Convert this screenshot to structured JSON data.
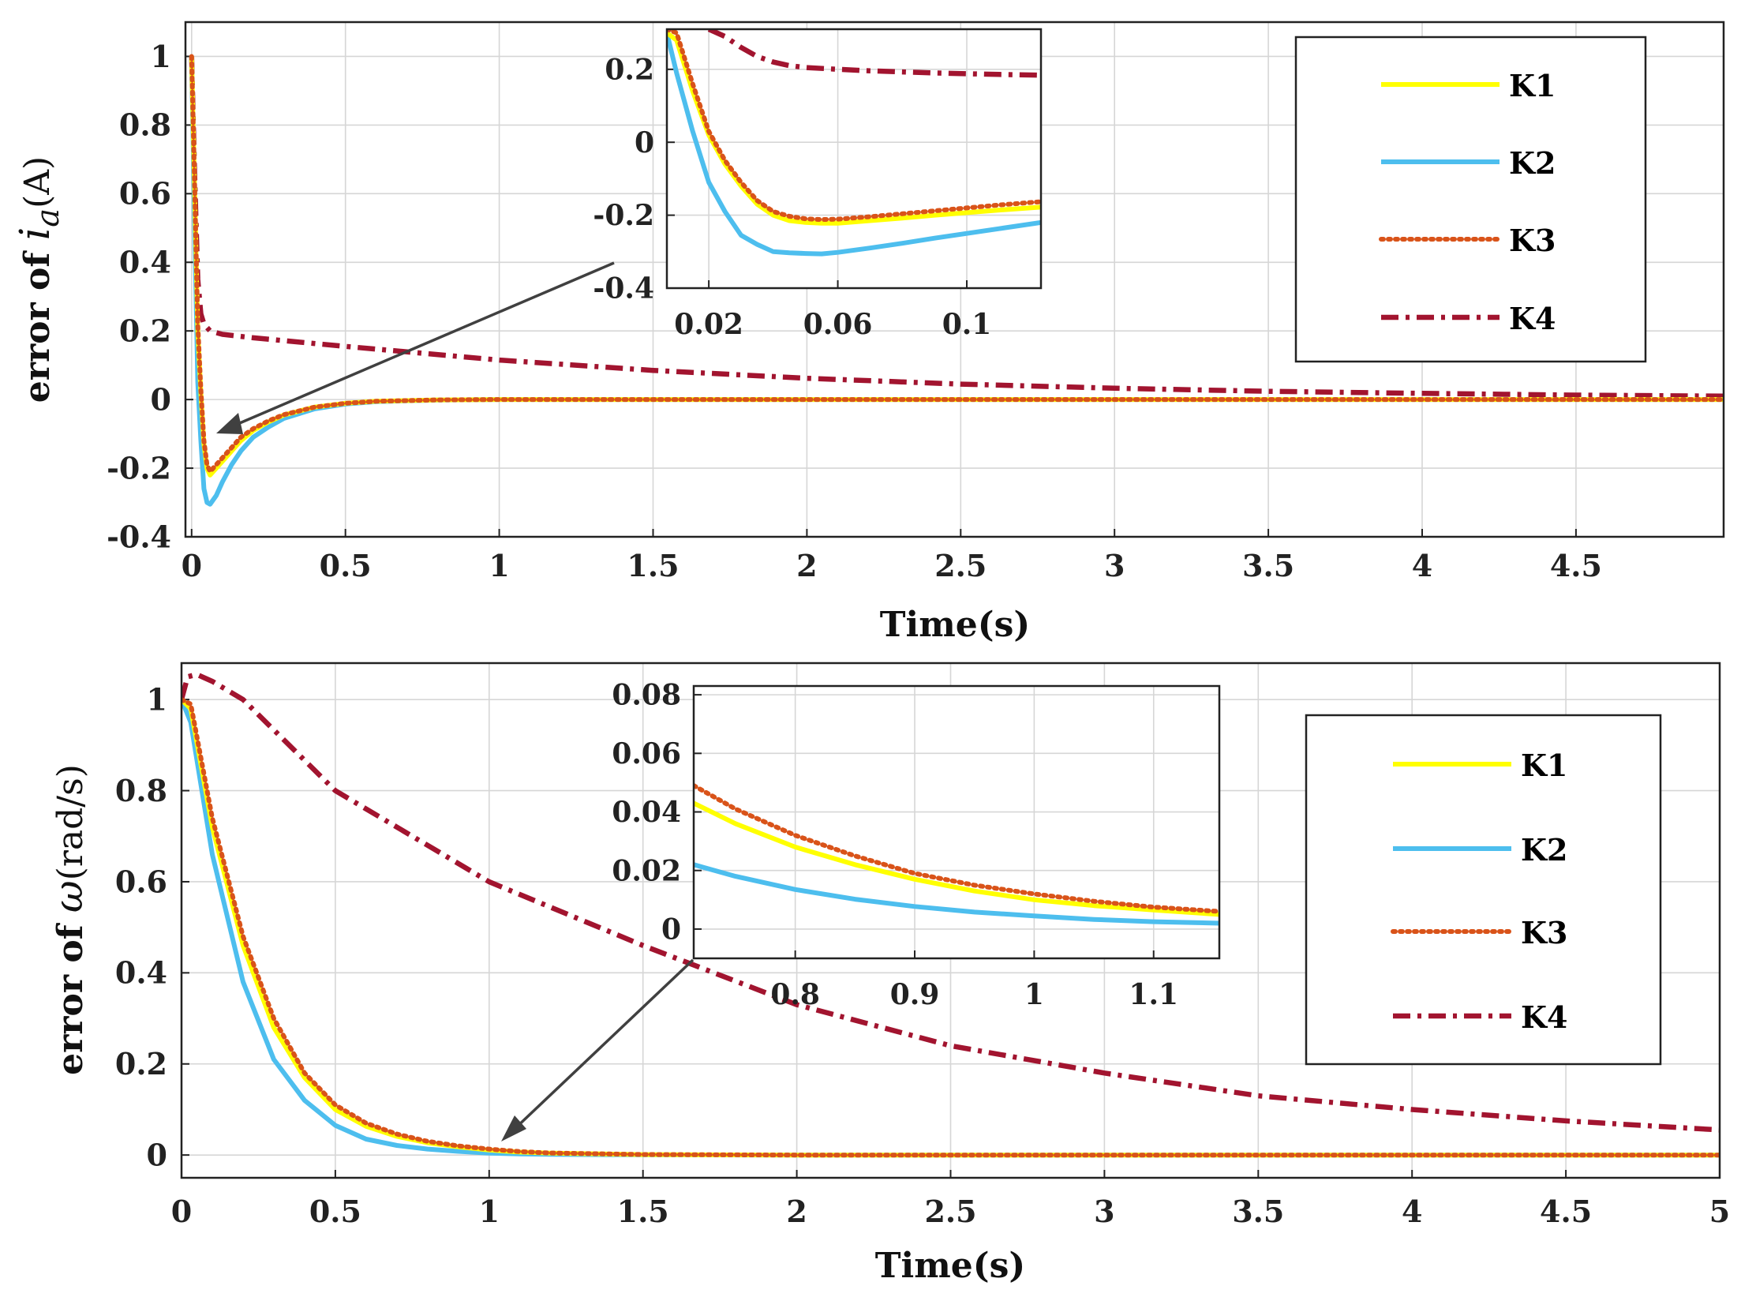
{
  "figure": {
    "background": "#ffffff"
  },
  "colors": {
    "K1": "#ffff00",
    "K2": "#4dbeee",
    "K3": "#d95319",
    "K4": "#a2142f",
    "arrow": "#404040"
  },
  "chart_data": [
    {
      "id": "top-main",
      "type": "line",
      "xlabel": "Time(s)",
      "ylabel_prefix": "error of ",
      "ylabel_symbol": "i",
      "ylabel_subscript": "a",
      "ylabel_unit": "(A)",
      "xlim": [
        -0.02,
        4.98
      ],
      "ylim": [
        -0.4,
        1.1
      ],
      "xticks": [
        0,
        0.5,
        1,
        1.5,
        2,
        2.5,
        3,
        3.5,
        4,
        4.5
      ],
      "xtick_labels": [
        "0",
        "0.5",
        "1",
        "1.5",
        "2",
        "2.5",
        "3",
        "3.5",
        "4",
        "4.5"
      ],
      "yticks": [
        -0.4,
        -0.2,
        0,
        0.2,
        0.4,
        0.6,
        0.8,
        1
      ],
      "ytick_labels": [
        "-0.4",
        "-0.2",
        "0",
        "0.2",
        "0.4",
        "0.6",
        "0.8",
        "1"
      ],
      "grid": true,
      "series": [
        {
          "name": "K1",
          "x": [
            0,
            0.01,
            0.02,
            0.03,
            0.04,
            0.05,
            0.06,
            0.08,
            0.1,
            0.13,
            0.16,
            0.2,
            0.25,
            0.3,
            0.4,
            0.5,
            0.6,
            0.8,
            1,
            1.5,
            2,
            3,
            4,
            4.98
          ],
          "y": [
            1,
            0.6,
            0.2,
            0.02,
            -0.13,
            -0.2,
            -0.22,
            -0.2,
            -0.18,
            -0.15,
            -0.12,
            -0.09,
            -0.065,
            -0.045,
            -0.022,
            -0.011,
            -0.005,
            -0.001,
            0,
            0,
            0,
            0,
            0,
            0
          ]
        },
        {
          "name": "K2",
          "x": [
            0,
            0.01,
            0.02,
            0.03,
            0.04,
            0.05,
            0.06,
            0.08,
            0.1,
            0.13,
            0.16,
            0.2,
            0.25,
            0.3,
            0.4,
            0.5,
            0.6,
            0.8,
            1,
            1.5,
            2,
            3,
            4,
            4.98
          ],
          "y": [
            1,
            0.5,
            0.05,
            -0.12,
            -0.26,
            -0.3,
            -0.305,
            -0.28,
            -0.24,
            -0.19,
            -0.15,
            -0.11,
            -0.08,
            -0.055,
            -0.027,
            -0.013,
            -0.006,
            -0.0015,
            0,
            0,
            0,
            0,
            0,
            0
          ]
        },
        {
          "name": "K3",
          "x": [
            0,
            0.01,
            0.02,
            0.03,
            0.04,
            0.05,
            0.06,
            0.08,
            0.1,
            0.13,
            0.16,
            0.2,
            0.25,
            0.3,
            0.4,
            0.5,
            0.6,
            0.8,
            1,
            1.5,
            2,
            3,
            4,
            4.98
          ],
          "y": [
            1,
            0.62,
            0.22,
            0.03,
            -0.12,
            -0.19,
            -0.21,
            -0.19,
            -0.17,
            -0.14,
            -0.11,
            -0.085,
            -0.062,
            -0.044,
            -0.022,
            -0.011,
            -0.005,
            -0.001,
            0,
            0,
            0,
            0,
            0,
            0
          ]
        },
        {
          "name": "K4",
          "x": [
            0,
            0.01,
            0.02,
            0.03,
            0.04,
            0.06,
            0.08,
            0.1,
            0.2,
            0.5,
            1,
            1.5,
            2,
            2.5,
            3,
            3.5,
            4,
            4.5,
            4.98
          ],
          "y": [
            1,
            0.65,
            0.35,
            0.25,
            0.22,
            0.2,
            0.195,
            0.19,
            0.18,
            0.155,
            0.115,
            0.085,
            0.062,
            0.045,
            0.033,
            0.024,
            0.018,
            0.013,
            0.01
          ]
        }
      ]
    },
    {
      "id": "top-inset",
      "type": "line",
      "xlim": [
        0.007,
        0.123
      ],
      "ylim": [
        -0.4,
        0.31
      ],
      "xticks": [
        0.02,
        0.06,
        0.1
      ],
      "xtick_labels": [
        "0.02",
        "0.06",
        "0.1"
      ],
      "yticks": [
        -0.4,
        -0.2,
        0,
        0.2
      ],
      "ytick_labels": [
        "-0.4",
        "-0.2",
        "0",
        "0.2"
      ],
      "grid": true,
      "series": [
        {
          "name": "K1",
          "x": [
            0.007,
            0.01,
            0.015,
            0.02,
            0.025,
            0.03,
            0.035,
            0.04,
            0.045,
            0.05,
            0.055,
            0.06,
            0.07,
            0.08,
            0.09,
            0.1,
            0.11,
            0.123
          ],
          "y": [
            0.3,
            0.28,
            0.14,
            0.02,
            -0.06,
            -0.12,
            -0.17,
            -0.2,
            -0.215,
            -0.22,
            -0.222,
            -0.222,
            -0.215,
            -0.208,
            -0.2,
            -0.193,
            -0.186,
            -0.178
          ]
        },
        {
          "name": "K2",
          "x": [
            0.007,
            0.01,
            0.015,
            0.02,
            0.025,
            0.03,
            0.035,
            0.04,
            0.045,
            0.05,
            0.055,
            0.06,
            0.07,
            0.08,
            0.09,
            0.1,
            0.11,
            0.123
          ],
          "y": [
            0.3,
            0.19,
            0.03,
            -0.11,
            -0.19,
            -0.255,
            -0.28,
            -0.3,
            -0.303,
            -0.305,
            -0.306,
            -0.302,
            -0.29,
            -0.277,
            -0.263,
            -0.25,
            -0.237,
            -0.22
          ]
        },
        {
          "name": "K3",
          "x": [
            0.007,
            0.01,
            0.015,
            0.02,
            0.025,
            0.03,
            0.035,
            0.04,
            0.045,
            0.05,
            0.055,
            0.06,
            0.07,
            0.08,
            0.09,
            0.1,
            0.11,
            0.123
          ],
          "y": [
            0.31,
            0.3,
            0.16,
            0.03,
            -0.05,
            -0.11,
            -0.16,
            -0.19,
            -0.203,
            -0.21,
            -0.212,
            -0.211,
            -0.204,
            -0.196,
            -0.188,
            -0.18,
            -0.172,
            -0.163
          ]
        },
        {
          "name": "K4",
          "x": [
            0.02,
            0.025,
            0.03,
            0.035,
            0.04,
            0.045,
            0.05,
            0.06,
            0.07,
            0.08,
            0.09,
            0.1,
            0.11,
            0.123
          ],
          "y": [
            0.31,
            0.29,
            0.26,
            0.235,
            0.22,
            0.21,
            0.205,
            0.2,
            0.196,
            0.193,
            0.19,
            0.188,
            0.186,
            0.184
          ]
        }
      ]
    },
    {
      "id": "bottom-main",
      "type": "line",
      "xlabel": "Time(s)",
      "ylabel_prefix": "error of ",
      "ylabel_symbol": "ω",
      "ylabel_unit": "(rad/s)",
      "xlim": [
        0,
        5
      ],
      "ylim": [
        -0.05,
        1.08
      ],
      "xticks": [
        0,
        0.5,
        1,
        1.5,
        2,
        2.5,
        3,
        3.5,
        4,
        4.5,
        5
      ],
      "xtick_labels": [
        "0",
        "0.5",
        "1",
        "1.5",
        "2",
        "2.5",
        "3",
        "3.5",
        "4",
        "4.5",
        "5"
      ],
      "yticks": [
        0,
        0.2,
        0.4,
        0.6,
        0.8,
        1
      ],
      "ytick_labels": [
        "0",
        "0.2",
        "0.4",
        "0.6",
        "0.8",
        "1"
      ],
      "grid": true,
      "series": [
        {
          "name": "K1",
          "x": [
            0,
            0.03,
            0.1,
            0.2,
            0.3,
            0.4,
            0.5,
            0.6,
            0.7,
            0.8,
            0.9,
            1,
            1.1,
            1.2,
            1.5,
            2,
            3,
            4,
            5
          ],
          "y": [
            1,
            0.98,
            0.72,
            0.46,
            0.28,
            0.17,
            0.1,
            0.063,
            0.041,
            0.027,
            0.018,
            0.011,
            0.0065,
            0.004,
            0.001,
            0,
            0,
            0,
            0
          ]
        },
        {
          "name": "K2",
          "x": [
            0,
            0.03,
            0.1,
            0.2,
            0.3,
            0.4,
            0.5,
            0.6,
            0.7,
            0.8,
            0.9,
            1,
            1.1,
            1.2,
            1.5,
            2,
            3,
            4,
            5
          ],
          "y": [
            1,
            0.95,
            0.66,
            0.38,
            0.21,
            0.12,
            0.065,
            0.035,
            0.021,
            0.013,
            0.008,
            0.004,
            0.0025,
            0.0015,
            0.0005,
            0,
            0,
            0,
            0
          ]
        },
        {
          "name": "K3",
          "x": [
            0,
            0.03,
            0.1,
            0.2,
            0.3,
            0.4,
            0.5,
            0.6,
            0.7,
            0.8,
            0.9,
            1,
            1.1,
            1.2,
            1.5,
            2,
            3,
            4,
            5
          ],
          "y": [
            1,
            0.99,
            0.74,
            0.48,
            0.3,
            0.18,
            0.11,
            0.07,
            0.046,
            0.03,
            0.02,
            0.013,
            0.0075,
            0.0045,
            0.0012,
            0,
            0,
            0,
            0
          ]
        },
        {
          "name": "K4",
          "x": [
            0,
            0.02,
            0.05,
            0.1,
            0.2,
            0.5,
            1,
            1.5,
            2,
            2.5,
            3,
            3.5,
            4,
            4.5,
            5
          ],
          "y": [
            1,
            1.05,
            1.055,
            1.04,
            1,
            0.8,
            0.6,
            0.46,
            0.33,
            0.24,
            0.18,
            0.13,
            0.1,
            0.075,
            0.055
          ]
        }
      ]
    },
    {
      "id": "bottom-inset",
      "type": "line",
      "xlim": [
        0.715,
        1.155
      ],
      "ylim": [
        -0.01,
        0.083
      ],
      "xticks": [
        0.8,
        0.9,
        1,
        1.1
      ],
      "xtick_labels": [
        "0.8",
        "0.9",
        "1",
        "1.1"
      ],
      "yticks": [
        0,
        0.02,
        0.04,
        0.06,
        0.08
      ],
      "ytick_labels": [
        "0",
        "0.02",
        "0.04",
        "0.06",
        "0.08"
      ],
      "grid": true,
      "series": [
        {
          "name": "K1",
          "x": [
            0.715,
            0.75,
            0.8,
            0.85,
            0.9,
            0.95,
            1,
            1.05,
            1.1,
            1.155
          ],
          "y": [
            0.043,
            0.036,
            0.028,
            0.022,
            0.017,
            0.013,
            0.01,
            0.008,
            0.0065,
            0.005
          ]
        },
        {
          "name": "K2",
          "x": [
            0.715,
            0.75,
            0.8,
            0.85,
            0.9,
            0.95,
            1,
            1.05,
            1.1,
            1.155
          ],
          "y": [
            0.022,
            0.018,
            0.0135,
            0.0102,
            0.0077,
            0.0058,
            0.0045,
            0.0033,
            0.0025,
            0.002
          ]
        },
        {
          "name": "K3",
          "x": [
            0.715,
            0.75,
            0.8,
            0.85,
            0.9,
            0.95,
            1,
            1.05,
            1.1,
            1.155
          ],
          "y": [
            0.049,
            0.041,
            0.032,
            0.025,
            0.019,
            0.015,
            0.012,
            0.0095,
            0.0075,
            0.006
          ]
        }
      ]
    }
  ],
  "legends": {
    "top": [
      "K1",
      "K2",
      "K3",
      "K4"
    ],
    "bottom": [
      "K1",
      "K2",
      "K3",
      "K4"
    ]
  }
}
